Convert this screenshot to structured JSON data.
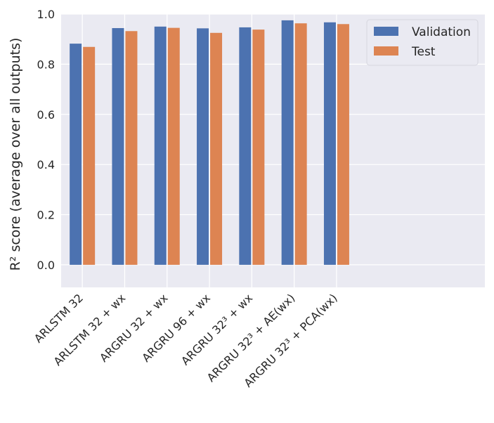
{
  "chart_data": {
    "type": "bar",
    "categories": [
      "ARLSTM 32",
      "ARLSTM 32 + wx",
      "ARGRU 32 + wx",
      "ARGRU 96 + wx",
      "ARGRU 32³ + wx",
      "ARGRU 32³ + AE(wx)",
      "ARGRU 32³ + PCA(wx)"
    ],
    "series": [
      {
        "name": "Validation",
        "color": "#4c72b0",
        "values": [
          0.882,
          0.944,
          0.95,
          0.943,
          0.947,
          0.975,
          0.967
        ]
      },
      {
        "name": "Test",
        "color": "#dd8452",
        "values": [
          0.869,
          0.932,
          0.945,
          0.925,
          0.938,
          0.963,
          0.96
        ]
      }
    ],
    "title": "",
    "xlabel": "",
    "ylabel": "R² score (average over all outputs)",
    "ylim": [
      -0.09,
      1.0
    ],
    "yticks": [
      0.0,
      0.2,
      0.4,
      0.6,
      0.8,
      1.0
    ],
    "ytick_labels": [
      "0.0",
      "0.2",
      "0.4",
      "0.6",
      "0.8",
      "1.0"
    ],
    "x_slots": 10,
    "grid": true,
    "legend_position": "top-right",
    "background_color": "#eaeaf2"
  }
}
